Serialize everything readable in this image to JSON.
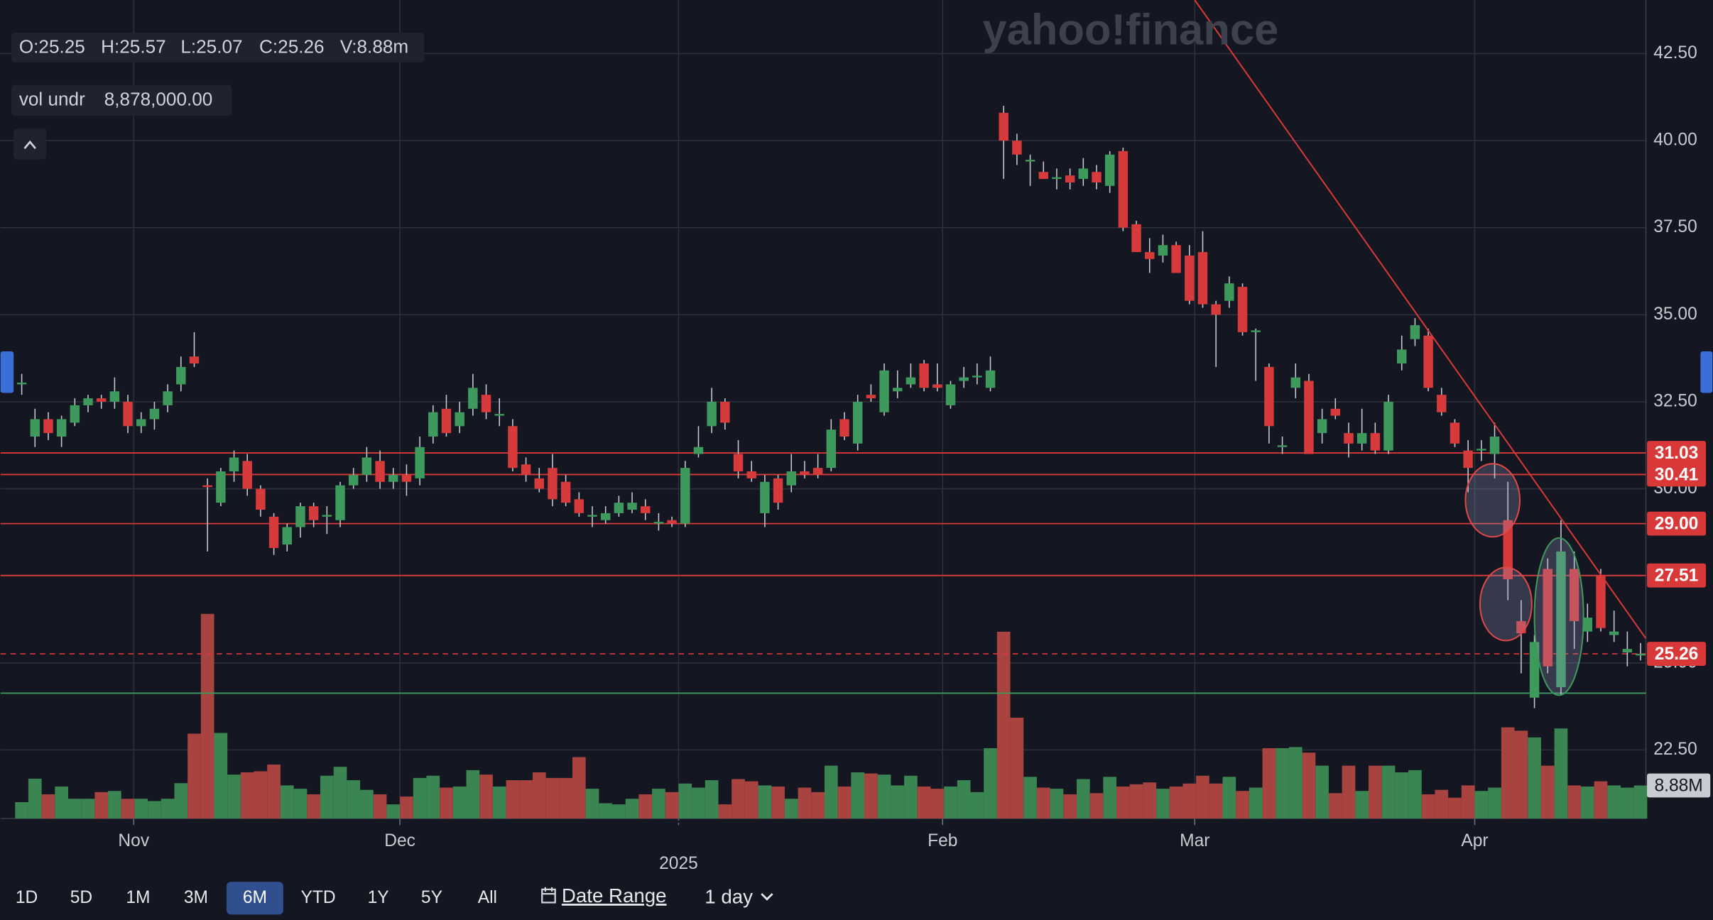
{
  "header": {
    "readout": [
      "O:25.25",
      "H:25.57",
      "L:25.07",
      "C:25.26",
      "V:8.88m"
    ],
    "indicator": [
      "vol undr",
      "8,878,000.00"
    ],
    "watermark": "yahoo!finance"
  },
  "chart_data": {
    "type": "candlestick",
    "candles": [
      [
        33.0,
        33.3,
        32.7,
        33.05
      ],
      [
        31.5,
        32.3,
        31.2,
        32.0
      ],
      [
        32.0,
        32.2,
        31.4,
        31.6
      ],
      [
        31.5,
        32.1,
        31.2,
        32.0
      ],
      [
        31.9,
        32.6,
        31.8,
        32.4
      ],
      [
        32.4,
        32.7,
        32.2,
        32.6
      ],
      [
        32.6,
        32.7,
        32.3,
        32.5
      ],
      [
        32.5,
        33.2,
        32.3,
        32.8
      ],
      [
        32.5,
        32.7,
        31.6,
        31.8
      ],
      [
        31.8,
        32.2,
        31.6,
        32.0
      ],
      [
        32.0,
        32.5,
        31.7,
        32.3
      ],
      [
        32.4,
        33.0,
        32.2,
        32.8
      ],
      [
        33.0,
        33.8,
        32.8,
        33.5
      ],
      [
        33.8,
        34.5,
        33.5,
        33.6
      ],
      [
        30.1,
        30.3,
        28.2,
        30.05
      ],
      [
        29.6,
        30.6,
        29.5,
        30.5
      ],
      [
        30.5,
        31.1,
        30.2,
        30.9
      ],
      [
        30.8,
        31.0,
        29.8,
        30.0
      ],
      [
        30.0,
        30.1,
        29.2,
        29.4
      ],
      [
        29.2,
        29.3,
        28.1,
        28.3
      ],
      [
        28.4,
        29.0,
        28.2,
        28.9
      ],
      [
        28.9,
        29.6,
        28.6,
        29.5
      ],
      [
        29.5,
        29.6,
        28.9,
        29.1
      ],
      [
        29.2,
        29.5,
        28.7,
        29.25
      ],
      [
        29.1,
        30.2,
        28.9,
        30.1
      ],
      [
        30.1,
        30.6,
        30.0,
        30.4
      ],
      [
        30.4,
        31.2,
        30.2,
        30.9
      ],
      [
        30.8,
        31.1,
        30.0,
        30.2
      ],
      [
        30.2,
        30.6,
        30.0,
        30.4
      ],
      [
        30.4,
        30.7,
        29.8,
        30.2
      ],
      [
        30.3,
        31.5,
        30.1,
        31.2
      ],
      [
        31.5,
        32.4,
        31.3,
        32.2
      ],
      [
        32.3,
        32.7,
        31.5,
        31.6
      ],
      [
        31.8,
        32.5,
        31.6,
        32.2
      ],
      [
        32.3,
        33.3,
        32.1,
        32.9
      ],
      [
        32.7,
        33.0,
        32.0,
        32.2
      ],
      [
        32.1,
        32.6,
        31.8,
        32.15
      ],
      [
        31.8,
        32.0,
        30.5,
        30.6
      ],
      [
        30.7,
        30.9,
        30.2,
        30.4
      ],
      [
        30.3,
        30.6,
        29.9,
        30.0
      ],
      [
        30.6,
        31.0,
        29.5,
        29.7
      ],
      [
        30.2,
        30.4,
        29.5,
        29.6
      ],
      [
        29.7,
        29.9,
        29.2,
        29.3
      ],
      [
        29.2,
        29.5,
        28.9,
        29.25
      ],
      [
        29.1,
        29.5,
        29.0,
        29.3
      ],
      [
        29.3,
        29.8,
        29.2,
        29.6
      ],
      [
        29.4,
        29.9,
        29.3,
        29.6
      ],
      [
        29.5,
        29.7,
        29.1,
        29.3
      ],
      [
        29.0,
        29.3,
        28.8,
        29.05
      ],
      [
        29.1,
        29.2,
        28.9,
        29.0
      ],
      [
        29.0,
        30.8,
        28.9,
        30.6
      ],
      [
        31.0,
        31.8,
        30.9,
        31.2
      ],
      [
        31.8,
        32.9,
        31.6,
        32.5
      ],
      [
        32.5,
        32.6,
        31.7,
        31.9
      ],
      [
        31.0,
        31.4,
        30.3,
        30.5
      ],
      [
        30.5,
        30.8,
        30.2,
        30.3
      ],
      [
        29.3,
        30.4,
        28.9,
        30.2
      ],
      [
        30.3,
        30.4,
        29.4,
        29.6
      ],
      [
        30.1,
        31.0,
        29.9,
        30.5
      ],
      [
        30.5,
        30.8,
        30.3,
        30.4
      ],
      [
        30.6,
        31.0,
        30.3,
        30.4
      ],
      [
        30.6,
        32.0,
        30.5,
        31.7
      ],
      [
        32.0,
        32.2,
        31.4,
        31.5
      ],
      [
        31.3,
        32.7,
        31.1,
        32.5
      ],
      [
        32.7,
        33.0,
        32.5,
        32.6
      ],
      [
        32.2,
        33.6,
        32.1,
        33.4
      ],
      [
        32.8,
        33.4,
        32.6,
        32.9
      ],
      [
        33.0,
        33.6,
        32.9,
        33.2
      ],
      [
        33.6,
        33.7,
        32.8,
        32.9
      ],
      [
        33.0,
        33.6,
        32.8,
        32.9
      ],
      [
        32.4,
        33.1,
        32.3,
        33.0
      ],
      [
        33.1,
        33.5,
        32.9,
        33.2
      ],
      [
        33.2,
        33.6,
        33.0,
        33.25
      ],
      [
        32.9,
        33.8,
        32.8,
        33.4
      ],
      [
        40.8,
        41.0,
        38.9,
        40.0
      ],
      [
        40.0,
        40.2,
        39.3,
        39.6
      ],
      [
        39.4,
        39.6,
        38.7,
        39.45
      ],
      [
        39.1,
        39.4,
        38.9,
        38.9
      ],
      [
        38.9,
        39.2,
        38.6,
        38.95
      ],
      [
        39.0,
        39.2,
        38.6,
        38.8
      ],
      [
        38.9,
        39.5,
        38.7,
        39.2
      ],
      [
        39.1,
        39.3,
        38.6,
        38.8
      ],
      [
        38.7,
        39.7,
        38.5,
        39.6
      ],
      [
        39.7,
        39.8,
        37.4,
        37.5
      ],
      [
        37.6,
        37.7,
        36.8,
        36.8
      ],
      [
        36.8,
        37.2,
        36.2,
        36.6
      ],
      [
        36.7,
        37.3,
        36.5,
        37.0
      ],
      [
        37.0,
        37.1,
        36.2,
        36.2
      ],
      [
        36.7,
        37.0,
        35.3,
        35.4
      ],
      [
        36.8,
        37.4,
        35.2,
        35.3
      ],
      [
        35.3,
        35.4,
        33.5,
        35.0
      ],
      [
        35.4,
        36.1,
        35.2,
        35.9
      ],
      [
        35.8,
        35.9,
        34.4,
        34.5
      ],
      [
        34.5,
        34.6,
        33.1,
        34.55
      ],
      [
        33.5,
        33.6,
        31.3,
        31.8
      ],
      [
        31.2,
        31.5,
        31.0,
        31.25
      ],
      [
        32.9,
        33.6,
        32.6,
        33.2
      ],
      [
        33.1,
        33.3,
        31.0,
        31.0
      ],
      [
        31.6,
        32.3,
        31.3,
        32.0
      ],
      [
        32.3,
        32.6,
        32.0,
        32.1
      ],
      [
        31.6,
        31.9,
        30.9,
        31.3
      ],
      [
        31.3,
        32.3,
        31.1,
        31.6
      ],
      [
        31.6,
        31.9,
        31.0,
        31.1
      ],
      [
        31.1,
        32.7,
        31.0,
        32.5
      ],
      [
        33.6,
        34.4,
        33.4,
        34.0
      ],
      [
        34.3,
        34.9,
        34.1,
        34.7
      ],
      [
        34.4,
        34.6,
        32.8,
        32.9
      ],
      [
        32.7,
        32.9,
        32.1,
        32.2
      ],
      [
        31.9,
        32.0,
        31.2,
        31.3
      ],
      [
        31.1,
        31.4,
        29.9,
        30.6
      ],
      [
        31.1,
        31.4,
        30.8,
        31.15
      ],
      [
        31.0,
        31.9,
        30.3,
        31.5
      ],
      [
        29.1,
        30.2,
        26.8,
        27.4
      ],
      [
        26.2,
        26.8,
        24.7,
        25.85
      ],
      [
        24.0,
        25.8,
        23.7,
        25.6
      ],
      [
        27.7,
        28.0,
        24.7,
        24.9
      ],
      [
        24.3,
        29.1,
        24.1,
        28.2
      ],
      [
        27.7,
        28.2,
        25.4,
        26.2
      ],
      [
        25.9,
        26.7,
        25.6,
        26.3
      ],
      [
        27.5,
        27.7,
        25.9,
        26.0
      ],
      [
        25.8,
        26.5,
        25.6,
        25.9
      ],
      [
        25.3,
        25.9,
        24.9,
        25.4
      ],
      [
        25.25,
        25.57,
        25.07,
        25.26
      ]
    ],
    "volume": [
      4.4,
      10.7,
      6.5,
      8.6,
      5.3,
      5.3,
      7.1,
      7.4,
      5.3,
      5.3,
      4.7,
      5.3,
      9.5,
      22.8,
      55,
      23,
      11.8,
      12.4,
      12.7,
      14.5,
      8.9,
      8.0,
      6.5,
      11.5,
      13.9,
      10.3,
      7.7,
      6.5,
      3.8,
      5.9,
      10.9,
      11.5,
      8.3,
      8.6,
      13.0,
      11.8,
      8.6,
      10.3,
      10.3,
      12.4,
      10.9,
      10.9,
      16.5,
      8.0,
      4.1,
      3.8,
      5.3,
      6.5,
      8.0,
      7.1,
      9.4,
      8.3,
      10.3,
      3.8,
      10.6,
      10.0,
      8.9,
      8.6,
      5.3,
      8.3,
      7.1,
      14.2,
      8.6,
      12.4,
      12.1,
      11.8,
      8.9,
      11.5,
      8.6,
      8.0,
      8.6,
      10.3,
      7.1,
      18.9,
      50.2,
      27.1,
      11.2,
      8.3,
      8.0,
      6.5,
      10.6,
      6.8,
      11.2,
      8.6,
      9.2,
      9.7,
      8.0,
      8.6,
      9.4,
      11.5,
      9.4,
      11.2,
      7.4,
      8.3,
      18.9,
      18.9,
      19.2,
      17.7,
      14.2,
      6.8,
      14.2,
      7.4,
      14.2,
      14.2,
      12.4,
      13.0,
      6.5,
      7.7,
      5.6,
      8.9,
      7.4,
      8.3,
      24.5,
      23.6,
      21.8,
      14.2,
      24.2,
      8.9,
      8.6,
      10.0,
      8.9,
      8.3,
      8.88
    ],
    "up_color": "#3d9a5c",
    "down_color": "#d63a3a",
    "volume_up_color": "#3a8552",
    "volume_down_color": "#a8433f",
    "xlim": [
      -1.6,
      122.4
    ],
    "ylim": [
      20.53,
      44.04
    ],
    "vlim": [
      0,
      220
    ],
    "grid": true,
    "yticks": [
      {
        "value": 22.5,
        "label": "22.50"
      },
      {
        "value": 25,
        "label": "25.00"
      },
      {
        "value": 27.5,
        "label": "27.50"
      },
      {
        "value": 30,
        "label": "30.00"
      },
      {
        "value": 32.5,
        "label": "32.50"
      },
      {
        "value": 35,
        "label": "35.00"
      },
      {
        "value": 37.5,
        "label": "37.50"
      },
      {
        "value": 40,
        "label": "40.00"
      },
      {
        "value": 42.5,
        "label": "42.50"
      }
    ],
    "xticks": [
      {
        "value": 8.44,
        "label": "Nov"
      },
      {
        "value": 28.5,
        "label": "Dec"
      },
      {
        "value": 69.4,
        "label": "Feb"
      },
      {
        "value": 88.4,
        "label": "Mar"
      },
      {
        "value": 109.5,
        "label": "Apr"
      }
    ],
    "year_ticks": [
      {
        "value": 49.5,
        "label": "2025"
      }
    ],
    "levels": [
      {
        "value": 31.03,
        "label": "31.03",
        "color": "#d93838"
      },
      {
        "value": 30.41,
        "label": "30.41",
        "color": "#d93838"
      },
      {
        "value": 29.0,
        "label": "29.00",
        "color": "#d93838"
      },
      {
        "value": 27.51,
        "label": "27.51",
        "color": "#d93838"
      }
    ],
    "support": {
      "value": 24.13,
      "color": "#3d9a5c"
    },
    "last_price": {
      "value": 25.26,
      "label": "25.26",
      "color": "#d93838"
    },
    "volume_last": {
      "value": 8.88,
      "label": "8.88M"
    },
    "trendline": {
      "from": [
        88.4,
        44.04
      ],
      "to": [
        122.4,
        25.7
      ],
      "color": "#d93838"
    },
    "ellipses": [
      {
        "x": [
          108.8,
          112.9
        ],
        "y": [
          28.62,
          30.72
        ],
        "color": "#e04848"
      },
      {
        "x": [
          109.9,
          113.8
        ],
        "y": [
          25.64,
          27.74
        ],
        "color": "#e04848"
      },
      {
        "x": [
          114.0,
          117.7
        ],
        "y": [
          24.07,
          28.59
        ],
        "color": "#3d9a5c"
      }
    ]
  },
  "controls": {
    "ranges": [
      "1D",
      "5D",
      "1M",
      "3M",
      "6M",
      "YTD",
      "1Y",
      "5Y",
      "All"
    ],
    "active": "6M",
    "date_range": "Date Range",
    "interval": "1 day"
  }
}
